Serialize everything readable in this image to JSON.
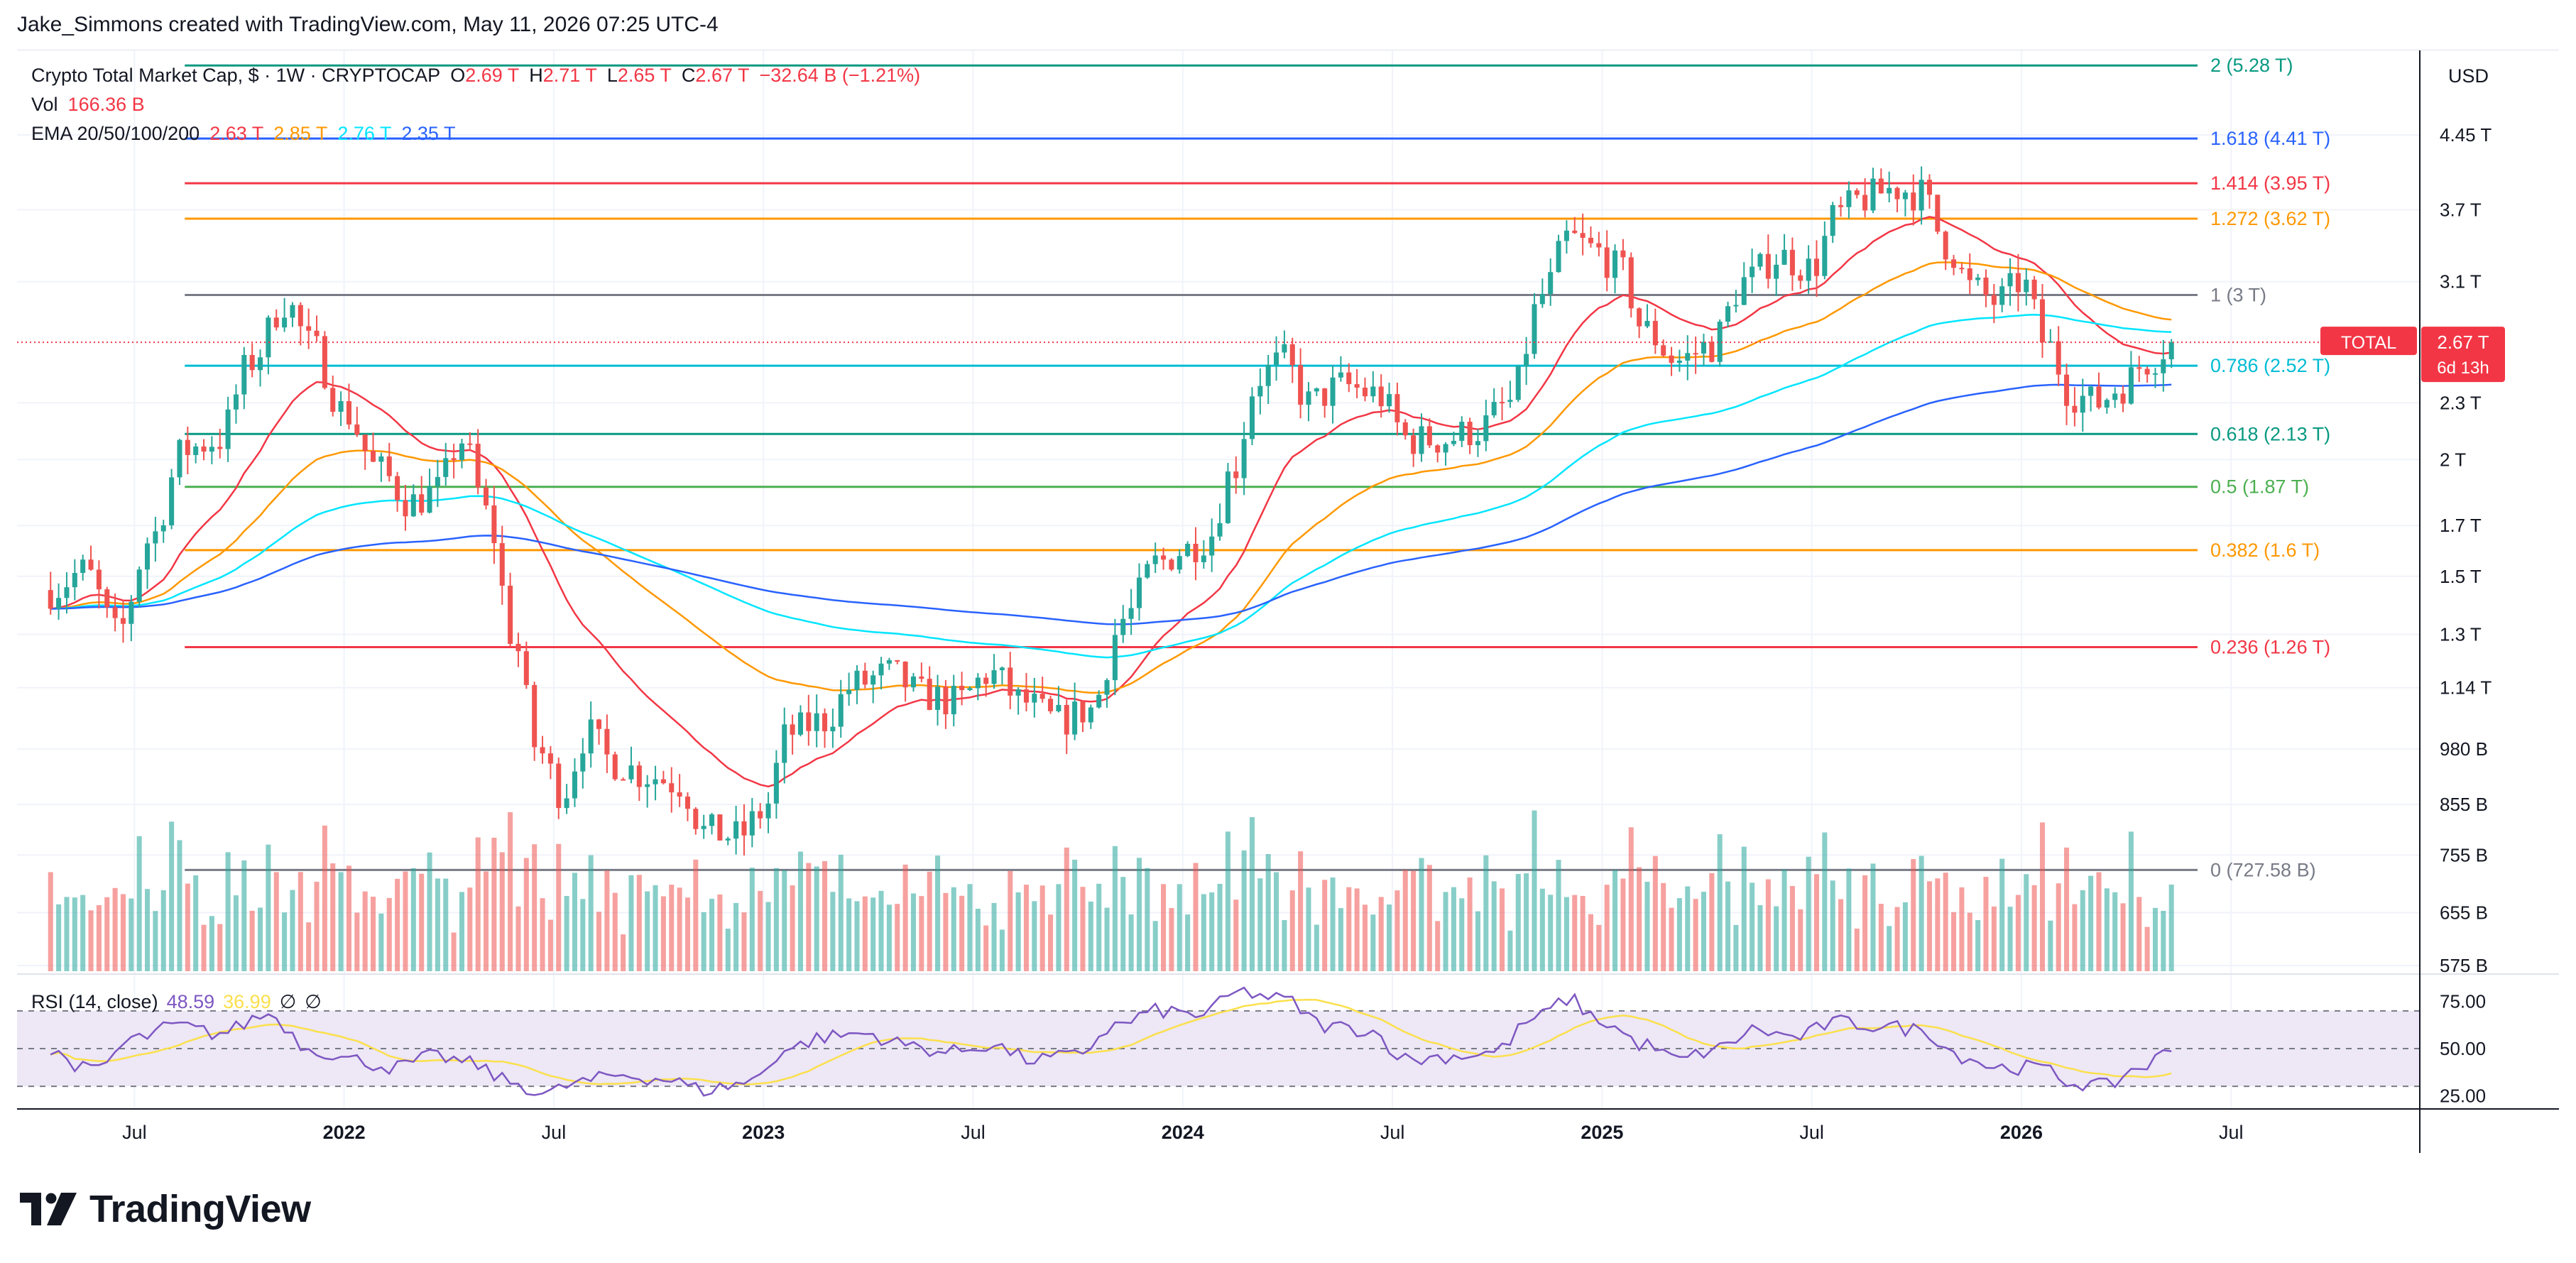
{
  "header": {
    "creator_line": "Jake_Simmons created with TradingView.com, May 11, 2026 07:25 UTC-4"
  },
  "legend": {
    "symbol": "Crypto Total Market Cap, $ · 1W · CRYPTOCAP",
    "o_label": "O",
    "o_value": "2.69 T",
    "h_label": "H",
    "h_value": "2.71 T",
    "l_label": "L",
    "l_value": "2.65 T",
    "c_label": "C",
    "c_value": "2.67 T",
    "change": "−32.64 B (−1.21%)",
    "vol_label": "Vol",
    "vol_value": "166.36 B",
    "ema_label": "EMA 20/50/100/200",
    "ema20": "2.63 T",
    "ema50": "2.85 T",
    "ema100": "2.76 T",
    "ema200": "2.35 T"
  },
  "rsi_legend": {
    "label": "RSI (14, close)",
    "rsi": "48.59",
    "ma": "36.99",
    "sym1": "∅",
    "sym2": "∅"
  },
  "brand": {
    "name": "TradingView",
    "logo": "tradingview-logo-icon"
  },
  "colors": {
    "up": "#26a69a",
    "down": "#ef5350",
    "ema20": "#f23645",
    "ema50": "#ff9800",
    "ema100": "#00e5ff",
    "ema200": "#2962ff",
    "rsi": "#7e57c2",
    "rsi_ma": "#fbe04c",
    "rsi_band": "#ede7f6",
    "price_tag": "#f23645"
  },
  "chart_data": {
    "type": "candlestick",
    "scale": "log",
    "currency": "USD",
    "price_axis_ticks": [
      "4.45 T",
      "3.7 T",
      "3.1 T",
      "2.3 T",
      "2 T",
      "1.7 T",
      "1.5 T",
      "1.3 T",
      "1.14 T",
      "980 B",
      "855 B",
      "755 B",
      "655 B",
      "575 B"
    ],
    "price_axis_values": [
      4.45,
      3.7,
      3.1,
      2.3,
      2.0,
      1.7,
      1.5,
      1.3,
      1.14,
      0.98,
      0.855,
      0.755,
      0.655,
      0.575
    ],
    "time_axis_labels": [
      "Jul",
      "2022",
      "Jul",
      "2023",
      "Jul",
      "2024",
      "Jul",
      "2025",
      "Jul",
      "2026",
      "Jul"
    ],
    "time_axis_values": [
      2021.5,
      2022.0,
      2022.5,
      2023.0,
      2023.5,
      2024.0,
      2024.5,
      2025.0,
      2025.5,
      2026.0,
      2026.5
    ],
    "last_price": {
      "symbol": "TOTAL",
      "price": "2.67 T",
      "countdown": "6d 13h"
    },
    "fib_levels": [
      {
        "ratio": "2",
        "label": "2 (5.28 T)",
        "value": 5.28,
        "color": "#089981"
      },
      {
        "ratio": "1.618",
        "label": "1.618 (4.41 T)",
        "value": 4.41,
        "color": "#2962ff"
      },
      {
        "ratio": "1.414",
        "label": "1.414 (3.95 T)",
        "value": 3.95,
        "color": "#f23645"
      },
      {
        "ratio": "1.272",
        "label": "1.272 (3.62 T)",
        "value": 3.62,
        "color": "#ff9800"
      },
      {
        "ratio": "1",
        "label": "1 (3 T)",
        "value": 3.0,
        "color": "#787b86"
      },
      {
        "ratio": "0.786",
        "label": "0.786 (2.52 T)",
        "value": 2.52,
        "color": "#00bcd4"
      },
      {
        "ratio": "0.618",
        "label": "0.618 (2.13 T)",
        "value": 2.13,
        "color": "#089981"
      },
      {
        "ratio": "0.5",
        "label": "0.5 (1.87 T)",
        "value": 1.87,
        "color": "#4caf50"
      },
      {
        "ratio": "0.382",
        "label": "0.382 (1.6 T)",
        "value": 1.6,
        "color": "#ff9800"
      },
      {
        "ratio": "0.236",
        "label": "0.236 (1.26 T)",
        "value": 1.26,
        "color": "#f23645"
      },
      {
        "ratio": "0",
        "label": "0 (727.58 B)",
        "value": 0.72758,
        "color": "#787b86"
      }
    ],
    "close_anchors_T": [
      [
        2021.3,
        1.45
      ],
      [
        2021.38,
        1.52
      ],
      [
        2021.46,
        1.3
      ],
      [
        2021.54,
        1.65
      ],
      [
        2021.62,
        2.05
      ],
      [
        2021.7,
        2.1
      ],
      [
        2021.78,
        2.55
      ],
      [
        2021.86,
        2.95
      ],
      [
        2021.92,
        2.65
      ],
      [
        2022.0,
        2.25
      ],
      [
        2022.08,
        1.95
      ],
      [
        2022.16,
        1.8
      ],
      [
        2022.22,
        1.85
      ],
      [
        2022.28,
        2.1
      ],
      [
        2022.34,
        1.75
      ],
      [
        2022.4,
        1.3
      ],
      [
        2022.46,
        0.98
      ],
      [
        2022.52,
        0.88
      ],
      [
        2022.58,
        1.02
      ],
      [
        2022.64,
        0.95
      ],
      [
        2022.72,
        0.92
      ],
      [
        2022.8,
        0.9
      ],
      [
        2022.86,
        0.8
      ],
      [
        2022.94,
        0.79
      ],
      [
        2023.0,
        0.84
      ],
      [
        2023.06,
        1.02
      ],
      [
        2023.14,
        1.05
      ],
      [
        2023.22,
        1.15
      ],
      [
        2023.3,
        1.18
      ],
      [
        2023.38,
        1.12
      ],
      [
        2023.46,
        1.1
      ],
      [
        2023.54,
        1.18
      ],
      [
        2023.62,
        1.1
      ],
      [
        2023.7,
        1.05
      ],
      [
        2023.78,
        1.08
      ],
      [
        2023.86,
        1.35
      ],
      [
        2023.94,
        1.55
      ],
      [
        2024.0,
        1.6
      ],
      [
        2024.06,
        1.65
      ],
      [
        2024.12,
        1.95
      ],
      [
        2024.18,
        2.45
      ],
      [
        2024.24,
        2.55
      ],
      [
        2024.3,
        2.3
      ],
      [
        2024.38,
        2.4
      ],
      [
        2024.46,
        2.35
      ],
      [
        2024.54,
        2.1
      ],
      [
        2024.62,
        2.1
      ],
      [
        2024.7,
        2.15
      ],
      [
        2024.78,
        2.3
      ],
      [
        2024.86,
        3.0
      ],
      [
        2024.92,
        3.45
      ],
      [
        2024.98,
        3.35
      ],
      [
        2025.04,
        3.2
      ],
      [
        2025.1,
        2.75
      ],
      [
        2025.18,
        2.55
      ],
      [
        2025.26,
        2.65
      ],
      [
        2025.34,
        3.1
      ],
      [
        2025.42,
        3.3
      ],
      [
        2025.5,
        3.2
      ],
      [
        2025.56,
        3.65
      ],
      [
        2025.62,
        3.8
      ],
      [
        2025.7,
        3.9
      ],
      [
        2025.76,
        3.85
      ],
      [
        2025.82,
        3.4
      ],
      [
        2025.88,
        3.05
      ],
      [
        2025.94,
        2.95
      ],
      [
        2026.0,
        3.1
      ],
      [
        2026.06,
        2.65
      ],
      [
        2026.12,
        2.35
      ],
      [
        2026.18,
        2.3
      ],
      [
        2026.24,
        2.4
      ],
      [
        2026.3,
        2.55
      ],
      [
        2026.36,
        2.67
      ]
    ],
    "volume_axis": "log-scaled shared price axis",
    "rsi_axis_ticks": [
      "75.00",
      "50.00",
      "25.00"
    ],
    "rsi_axis_values": [
      75,
      50,
      25
    ],
    "rsi_anchors": [
      [
        2021.3,
        48
      ],
      [
        2021.4,
        38
      ],
      [
        2021.5,
        55
      ],
      [
        2021.6,
        62
      ],
      [
        2021.7,
        58
      ],
      [
        2021.82,
        68
      ],
      [
        2021.92,
        50
      ],
      [
        2022.02,
        44
      ],
      [
        2022.12,
        40
      ],
      [
        2022.22,
        46
      ],
      [
        2022.3,
        42
      ],
      [
        2022.4,
        32
      ],
      [
        2022.48,
        26
      ],
      [
        2022.56,
        32
      ],
      [
        2022.66,
        36
      ],
      [
        2022.76,
        34
      ],
      [
        2022.86,
        28
      ],
      [
        2022.96,
        32
      ],
      [
        2023.06,
        50
      ],
      [
        2023.14,
        56
      ],
      [
        2023.24,
        58
      ],
      [
        2023.34,
        52
      ],
      [
        2023.44,
        48
      ],
      [
        2023.54,
        52
      ],
      [
        2023.64,
        44
      ],
      [
        2023.74,
        46
      ],
      [
        2023.84,
        62
      ],
      [
        2023.94,
        70
      ],
      [
        2024.04,
        68
      ],
      [
        2024.14,
        80
      ],
      [
        2024.24,
        76
      ],
      [
        2024.34,
        62
      ],
      [
        2024.44,
        60
      ],
      [
        2024.54,
        44
      ],
      [
        2024.64,
        46
      ],
      [
        2024.74,
        48
      ],
      [
        2024.84,
        66
      ],
      [
        2024.92,
        76
      ],
      [
        2025.0,
        64
      ],
      [
        2025.1,
        52
      ],
      [
        2025.18,
        44
      ],
      [
        2025.28,
        50
      ],
      [
        2025.36,
        60
      ],
      [
        2025.46,
        56
      ],
      [
        2025.56,
        64
      ],
      [
        2025.66,
        62
      ],
      [
        2025.76,
        60
      ],
      [
        2025.86,
        46
      ],
      [
        2025.94,
        40
      ],
      [
        2026.04,
        40
      ],
      [
        2026.12,
        32
      ],
      [
        2026.2,
        30
      ],
      [
        2026.28,
        40
      ],
      [
        2026.36,
        48.59
      ]
    ]
  }
}
